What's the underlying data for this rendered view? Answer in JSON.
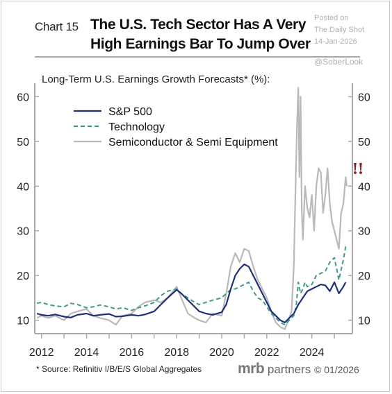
{
  "header": {
    "chart_number": "Chart 15",
    "title_line1": "The U.S. Tech Sector Has A Very",
    "title_line2": "High Earnings Bar To Jump Over"
  },
  "watermark": {
    "line1": "Posted on",
    "line2": "The Daily Shot",
    "line3": "14-Jan-2026",
    "handle": "@SoberLook"
  },
  "footer": {
    "source": "* Source: Refinitiv I/B/E/S Global Aggregates",
    "brand": "mrb",
    "brand_suffix": "partners",
    "date": "© 01/2026"
  },
  "colors": {
    "sp500": "#1f2f7a",
    "technology": "#3f9a8a",
    "semis": "#b9b9b9",
    "alert": "#8b1a1a",
    "axis": "#a9a9a9"
  },
  "chart_data": {
    "type": "line",
    "subtitle": "Long-Term U.S. Earnings Growth Forecasts* (%):",
    "xlim": [
      2011.7,
      2025.8
    ],
    "ylim": [
      7,
      63
    ],
    "x_ticks": [
      2012,
      2014,
      2016,
      2018,
      2020,
      2022,
      2024
    ],
    "y_ticks": [
      10,
      20,
      30,
      40,
      50,
      60
    ],
    "y_axes": "left and right (same scale)",
    "grid": false,
    "legend_position": "top-left",
    "annotation": "!!",
    "series": [
      {
        "name": "S&P 500",
        "style": "solid",
        "color": "#1f2f7a",
        "x": [
          2011.8,
          2012.0,
          2012.3,
          2012.6,
          2013.0,
          2013.3,
          2013.6,
          2014.0,
          2014.3,
          2014.6,
          2015.0,
          2015.3,
          2015.6,
          2016.0,
          2016.3,
          2016.6,
          2017.0,
          2017.3,
          2017.6,
          2018.0,
          2018.2,
          2018.5,
          2018.8,
          2019.0,
          2019.3,
          2019.6,
          2020.0,
          2020.2,
          2020.4,
          2020.6,
          2020.8,
          2021.0,
          2021.2,
          2021.4,
          2021.6,
          2021.8,
          2022.0,
          2022.2,
          2022.4,
          2022.6,
          2022.8,
          2023.0,
          2023.2,
          2023.4,
          2023.6,
          2023.8,
          2024.0,
          2024.2,
          2024.4,
          2024.6,
          2024.8,
          2025.0,
          2025.2,
          2025.4,
          2025.5
        ],
        "values": [
          11.5,
          11.2,
          11.0,
          11.3,
          10.8,
          10.6,
          11.2,
          11.5,
          11.0,
          11.2,
          11.4,
          10.8,
          10.9,
          11.2,
          11.0,
          11.3,
          12.0,
          13.5,
          15.0,
          16.8,
          16.0,
          14.5,
          13.0,
          12.0,
          11.5,
          11.2,
          11.8,
          13.5,
          17.0,
          20.0,
          21.5,
          22.5,
          22.0,
          20.0,
          18.0,
          16.0,
          14.0,
          12.0,
          11.0,
          10.0,
          9.5,
          10.5,
          11.5,
          13.5,
          15.0,
          16.5,
          17.0,
          17.5,
          18.0,
          17.8,
          16.5,
          18.5,
          16.0,
          17.5,
          18.5
        ]
      },
      {
        "name": "Technology",
        "style": "dashed",
        "color": "#3f9a8a",
        "x": [
          2011.8,
          2012.0,
          2012.3,
          2012.6,
          2013.0,
          2013.3,
          2013.6,
          2014.0,
          2014.3,
          2014.6,
          2015.0,
          2015.3,
          2015.6,
          2016.0,
          2016.3,
          2016.6,
          2017.0,
          2017.3,
          2017.6,
          2018.0,
          2018.2,
          2018.5,
          2018.8,
          2019.0,
          2019.3,
          2019.6,
          2020.0,
          2020.2,
          2020.4,
          2020.6,
          2020.8,
          2021.0,
          2021.2,
          2021.4,
          2021.6,
          2021.8,
          2022.0,
          2022.2,
          2022.4,
          2022.6,
          2022.8,
          2023.0,
          2023.2,
          2023.3,
          2023.4,
          2023.5,
          2023.6,
          2023.7,
          2023.8,
          2024.0,
          2024.2,
          2024.4,
          2024.6,
          2024.8,
          2025.0,
          2025.2,
          2025.4,
          2025.5
        ],
        "values": [
          13.8,
          14.0,
          13.5,
          13.2,
          13.0,
          13.8,
          13.5,
          12.8,
          13.0,
          13.4,
          13.0,
          12.5,
          12.8,
          12.2,
          12.8,
          13.2,
          14.0,
          15.5,
          16.5,
          17.0,
          16.0,
          15.0,
          14.0,
          13.5,
          14.0,
          14.5,
          15.0,
          16.0,
          16.8,
          17.0,
          17.5,
          18.0,
          18.5,
          16.5,
          15.0,
          14.5,
          13.0,
          11.5,
          10.5,
          9.5,
          9.0,
          10.0,
          11.0,
          13.0,
          18.5,
          16.0,
          17.0,
          18.5,
          17.5,
          18.0,
          20.0,
          20.5,
          21.0,
          23.0,
          24.0,
          19.0,
          23.5,
          26.5
        ]
      },
      {
        "name": "Semiconductor & Semi Equipment",
        "style": "solid",
        "color": "#b9b9b9",
        "x": [
          2011.8,
          2012.0,
          2012.3,
          2012.6,
          2013.0,
          2013.3,
          2013.6,
          2014.0,
          2014.3,
          2014.6,
          2015.0,
          2015.3,
          2015.6,
          2016.0,
          2016.3,
          2016.6,
          2017.0,
          2017.3,
          2017.6,
          2018.0,
          2018.2,
          2018.5,
          2018.8,
          2019.0,
          2019.3,
          2019.6,
          2020.0,
          2020.2,
          2020.4,
          2020.6,
          2020.8,
          2021.0,
          2021.2,
          2021.4,
          2021.6,
          2021.8,
          2022.0,
          2022.2,
          2022.4,
          2022.6,
          2022.8,
          2023.0,
          2023.1,
          2023.2,
          2023.3,
          2023.35,
          2023.4,
          2023.45,
          2023.5,
          2023.55,
          2023.6,
          2023.7,
          2023.8,
          2023.9,
          2024.0,
          2024.1,
          2024.2,
          2024.3,
          2024.4,
          2024.5,
          2024.6,
          2024.7,
          2024.8,
          2024.9,
          2025.0,
          2025.1,
          2025.2,
          2025.3,
          2025.4,
          2025.5,
          2025.55
        ],
        "values": [
          10.5,
          11.0,
          10.5,
          11.0,
          10.0,
          11.5,
          12.0,
          12.5,
          11.0,
          10.5,
          10.0,
          9.0,
          11.0,
          11.5,
          13.0,
          14.0,
          14.5,
          14.0,
          15.0,
          17.5,
          15.0,
          11.5,
          10.5,
          10.0,
          9.5,
          11.5,
          11.0,
          16.0,
          22.0,
          25.0,
          23.0,
          26.0,
          25.5,
          22.0,
          19.0,
          17.0,
          15.0,
          12.0,
          9.5,
          8.5,
          8.0,
          10.5,
          12.0,
          22.0,
          45.0,
          55.0,
          62.0,
          42.0,
          60.0,
          35.0,
          28.0,
          40.0,
          35.0,
          33.0,
          38.0,
          30.0,
          40.0,
          44.0,
          43.0,
          34.0,
          38.0,
          44.0,
          36.0,
          32.0,
          30.0,
          28.0,
          26.0,
          34.0,
          36.0,
          42.0,
          40.0
        ]
      }
    ]
  }
}
